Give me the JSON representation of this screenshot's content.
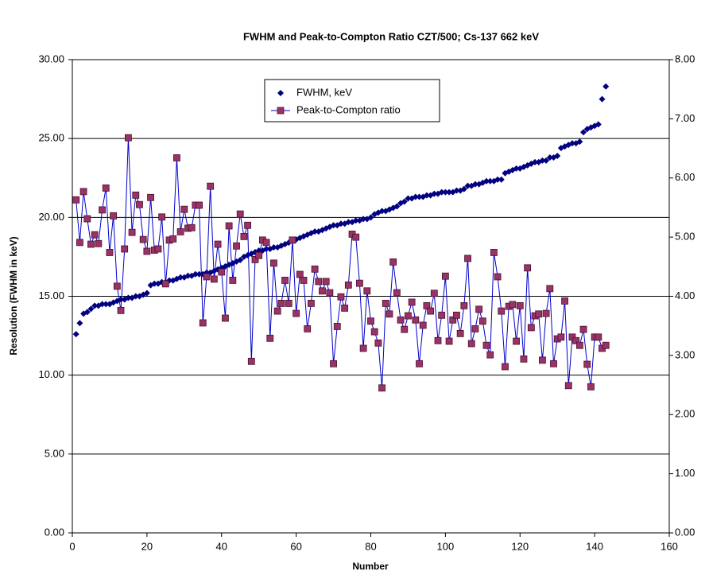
{
  "chart_data": {
    "type": "scatter",
    "title": "FWHM and Peak-to-Compton Ratio CZT/500; Cs-137 662 keV",
    "x_label": "Number",
    "y_label": "Resolution (FWHM in keV)",
    "x": [
      1,
      2,
      3,
      4,
      5,
      6,
      7,
      8,
      9,
      10,
      11,
      12,
      13,
      14,
      15,
      16,
      17,
      18,
      19,
      20,
      21,
      22,
      23,
      24,
      25,
      26,
      27,
      28,
      29,
      30,
      31,
      32,
      33,
      34,
      35,
      36,
      37,
      38,
      39,
      40,
      41,
      42,
      43,
      44,
      45,
      46,
      47,
      48,
      49,
      50,
      51,
      52,
      53,
      54,
      55,
      56,
      57,
      58,
      59,
      60,
      61,
      62,
      63,
      64,
      65,
      66,
      67,
      68,
      69,
      70,
      71,
      72,
      73,
      74,
      75,
      76,
      77,
      78,
      79,
      80,
      81,
      82,
      83,
      84,
      85,
      86,
      87,
      88,
      89,
      90,
      91,
      92,
      93,
      94,
      95,
      96,
      97,
      98,
      99,
      100,
      101,
      102,
      103,
      104,
      105,
      106,
      107,
      108,
      109,
      110,
      111,
      112,
      113,
      114,
      115,
      116,
      117,
      118,
      119,
      120,
      121,
      122,
      123,
      124,
      125,
      126,
      127,
      128,
      129,
      130,
      131,
      132,
      133,
      134,
      135,
      136,
      137,
      138,
      139,
      140,
      141,
      142,
      143
    ],
    "series": [
      {
        "name": "FWHM, keV",
        "color": "#000080",
        "marker": "diamond",
        "line": false,
        "values": [
          12.6,
          13.3,
          13.9,
          14.0,
          14.2,
          14.4,
          14.4,
          14.5,
          14.5,
          14.5,
          14.6,
          14.7,
          14.8,
          14.8,
          14.9,
          14.9,
          15.0,
          15.0,
          15.1,
          15.2,
          15.7,
          15.8,
          15.8,
          15.9,
          15.9,
          16.0,
          16.0,
          16.1,
          16.2,
          16.2,
          16.3,
          16.3,
          16.4,
          16.4,
          16.4,
          16.5,
          16.5,
          16.6,
          16.7,
          16.8,
          16.9,
          17.0,
          17.1,
          17.2,
          17.3,
          17.5,
          17.6,
          17.7,
          17.8,
          17.9,
          17.9,
          18.0,
          18.0,
          18.1,
          18.1,
          18.2,
          18.3,
          18.4,
          18.5,
          18.6,
          18.7,
          18.8,
          18.9,
          19.0,
          19.1,
          19.1,
          19.2,
          19.3,
          19.4,
          19.5,
          19.5,
          19.6,
          19.6,
          19.7,
          19.7,
          19.8,
          19.8,
          19.9,
          19.9,
          20.0,
          20.2,
          20.3,
          20.4,
          20.4,
          20.5,
          20.6,
          20.7,
          20.9,
          21.0,
          21.2,
          21.2,
          21.3,
          21.3,
          21.3,
          21.4,
          21.4,
          21.5,
          21.5,
          21.6,
          21.6,
          21.6,
          21.6,
          21.7,
          21.7,
          21.8,
          22.0,
          22.0,
          22.1,
          22.1,
          22.2,
          22.3,
          22.3,
          22.3,
          22.4,
          22.4,
          22.8,
          22.9,
          23.0,
          23.1,
          23.1,
          23.2,
          23.3,
          23.4,
          23.5,
          23.5,
          23.6,
          23.6,
          23.8,
          23.8,
          23.9,
          24.4,
          24.5,
          24.6,
          24.7,
          24.7,
          24.8,
          25.4,
          25.6,
          25.7,
          25.8,
          25.9,
          27.5,
          28.3
        ]
      },
      {
        "name": "Peak-to-Compton ratio",
        "color": "#993366",
        "line_color": "#0000cc",
        "marker": "square",
        "line": true,
        "axis": "y2",
        "values": [
          5.63,
          4.91,
          5.77,
          5.31,
          4.88,
          5.04,
          4.89,
          5.46,
          5.83,
          4.74,
          5.36,
          4.17,
          3.76,
          4.8,
          6.68,
          5.08,
          5.71,
          5.55,
          4.96,
          4.76,
          5.67,
          4.78,
          4.8,
          5.34,
          4.21,
          4.95,
          4.97,
          6.34,
          5.09,
          5.47,
          5.15,
          5.16,
          5.54,
          5.54,
          3.55,
          4.33,
          5.86,
          4.29,
          4.88,
          4.41,
          3.63,
          5.19,
          4.27,
          4.85,
          5.39,
          5.01,
          5.2,
          2.9,
          4.62,
          4.69,
          4.95,
          4.91,
          3.29,
          4.56,
          3.75,
          3.88,
          4.27,
          3.88,
          4.95,
          3.71,
          4.37,
          4.27,
          3.45,
          3.88,
          4.46,
          4.25,
          4.09,
          4.25,
          4.06,
          2.86,
          3.49,
          3.99,
          3.8,
          4.19,
          5.05,
          5.0,
          4.22,
          3.12,
          4.09,
          3.58,
          3.4,
          3.21,
          2.45,
          3.88,
          3.7,
          4.58,
          4.06,
          3.6,
          3.44,
          3.67,
          3.9,
          3.6,
          2.86,
          3.51,
          3.84,
          3.75,
          4.05,
          3.25,
          3.68,
          4.34,
          3.24,
          3.6,
          3.68,
          3.37,
          3.84,
          4.64,
          3.2,
          3.45,
          3.78,
          3.58,
          3.17,
          3.01,
          4.74,
          4.33,
          3.75,
          2.81,
          3.83,
          3.86,
          3.24,
          3.84,
          2.94,
          4.48,
          3.47,
          3.67,
          3.7,
          2.92,
          3.71,
          4.13,
          2.86,
          3.28,
          3.31,
          3.92,
          2.49,
          3.31,
          3.25,
          3.17,
          3.44,
          2.85,
          2.47,
          3.31,
          3.31,
          3.12,
          3.17
        ]
      }
    ],
    "xlim": [
      0,
      160
    ],
    "xticks": [
      0,
      20,
      40,
      60,
      80,
      100,
      120,
      140,
      160
    ],
    "ylim": [
      0,
      30
    ],
    "yticks": [
      {
        "value": 0,
        "label": "0.00"
      },
      {
        "value": 5,
        "label": "5.00"
      },
      {
        "value": 10,
        "label": "10.00"
      },
      {
        "value": 15,
        "label": "15.00"
      },
      {
        "value": 20,
        "label": "20.00"
      },
      {
        "value": 25,
        "label": "25.00"
      },
      {
        "value": 30,
        "label": "30.00"
      }
    ],
    "y2lim": [
      0,
      8
    ],
    "y2ticks": [
      {
        "value": 0,
        "label": "0.00"
      },
      {
        "value": 1,
        "label": "1.00"
      },
      {
        "value": 2,
        "label": "2.00"
      },
      {
        "value": 3,
        "label": "3.00"
      },
      {
        "value": 4,
        "label": "4.00"
      },
      {
        "value": 5,
        "label": "5.00"
      },
      {
        "value": 6,
        "label": "6.00"
      },
      {
        "value": 7,
        "label": "7.00"
      },
      {
        "value": 8,
        "label": "8.00"
      }
    ],
    "grid": true,
    "legend": "top"
  }
}
